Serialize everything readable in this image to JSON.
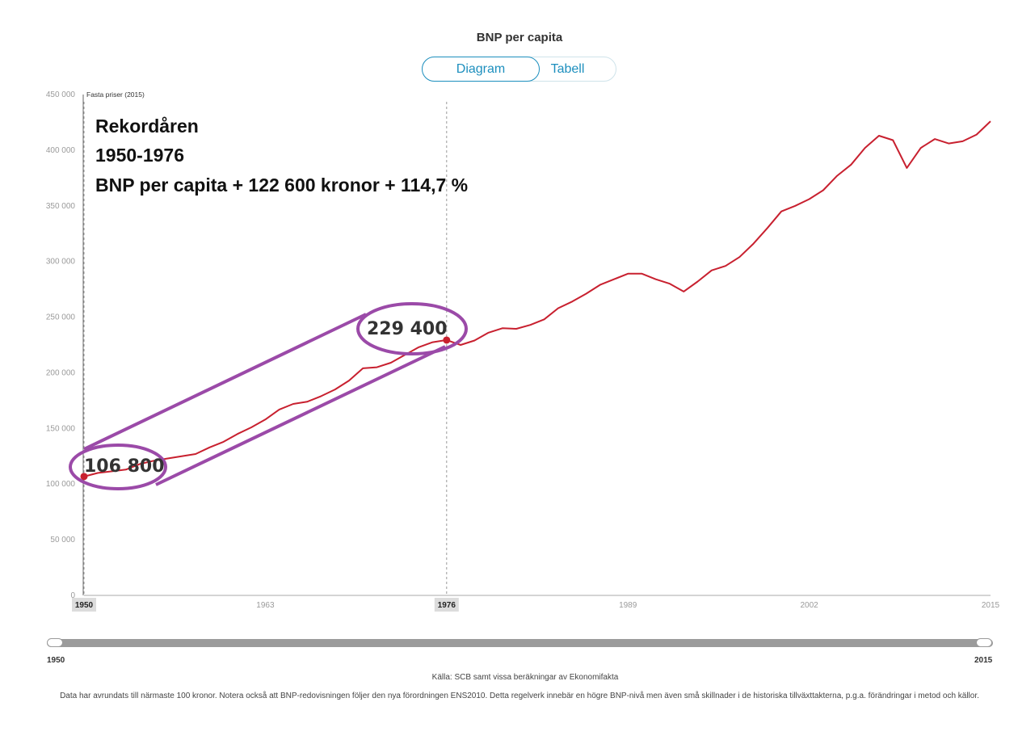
{
  "title": "BNP per capita",
  "tabs": {
    "diagram": "Diagram",
    "tabell": "Tabell"
  },
  "colors": {
    "line": "#c8202f",
    "annotation": "#9b4aa8",
    "accent": "#1d8fbe"
  },
  "annotation": {
    "line1": "Rekordåren",
    "line2": "1950-1976",
    "line3": "BNP per capita + 122 600 kronor + 114,7 %",
    "start_value": "106 800",
    "end_value": "229 400"
  },
  "slider": {
    "min_label": "1950",
    "max_label": "2015"
  },
  "source": "Källa: SCB samt vissa beräkningar av Ekonomifakta",
  "note": "Data har avrundats till närmaste 100 kronor. Notera också att BNP-redovisningen följer den nya förordningen ENS2010. Detta regelverk innebär en högre BNP-nivå men även små skillnader i de historiska tillväxttakterna, p.g.a. förändringar i metod och källor.",
  "chart_data": {
    "type": "line",
    "title": "BNP per capita",
    "ylabel": "Fasta priser (2015)",
    "xlabel": "",
    "xlim": [
      1950,
      2015
    ],
    "ylim": [
      0,
      450000
    ],
    "y_ticks": [
      0,
      50000,
      100000,
      150000,
      200000,
      250000,
      300000,
      350000,
      400000,
      450000
    ],
    "y_tick_labels": [
      "0",
      "50 000",
      "100 000",
      "150 000",
      "200 000",
      "250 000",
      "300 000",
      "350 000",
      "400 000",
      "450 000"
    ],
    "x_ticks": [
      1950,
      1963,
      1976,
      1989,
      2002,
      2015
    ],
    "x_tick_labels": [
      "1950",
      "1963",
      "1976",
      "1989",
      "2002",
      "2015"
    ],
    "highlighted_x_ticks": [
      "1950",
      "1976"
    ],
    "marker_years": [
      1950,
      1976
    ],
    "series": [
      {
        "name": "BNP per capita",
        "x": [
          1950,
          1951,
          1952,
          1953,
          1954,
          1955,
          1956,
          1957,
          1958,
          1959,
          1960,
          1961,
          1962,
          1963,
          1964,
          1965,
          1966,
          1967,
          1968,
          1969,
          1970,
          1971,
          1972,
          1973,
          1974,
          1975,
          1976,
          1977,
          1978,
          1979,
          1980,
          1981,
          1982,
          1983,
          1984,
          1985,
          1986,
          1987,
          1988,
          1989,
          1990,
          1991,
          1992,
          1993,
          1994,
          1995,
          1996,
          1997,
          1998,
          1999,
          2000,
          2001,
          2002,
          2003,
          2004,
          2005,
          2006,
          2007,
          2008,
          2009,
          2010,
          2011,
          2012,
          2013,
          2014,
          2015
        ],
        "values": [
          106800,
          110000,
          111500,
          113000,
          118000,
          121000,
          123000,
          125000,
          127000,
          133000,
          138000,
          145000,
          151000,
          158000,
          167000,
          172000,
          174000,
          179000,
          185000,
          193000,
          204000,
          205000,
          209000,
          216000,
          223000,
          227500,
          229400,
          225000,
          229000,
          236000,
          240000,
          239500,
          243000,
          248000,
          258000,
          264000,
          271000,
          279000,
          284000,
          289000,
          289000,
          284000,
          280000,
          273000,
          282000,
          292000,
          296000,
          304000,
          316000,
          330000,
          345000,
          350000,
          356000,
          364000,
          377000,
          387000,
          402000,
          413000,
          409000,
          384000,
          402000,
          410000,
          406000,
          408000,
          414000,
          426000
        ]
      }
    ]
  }
}
